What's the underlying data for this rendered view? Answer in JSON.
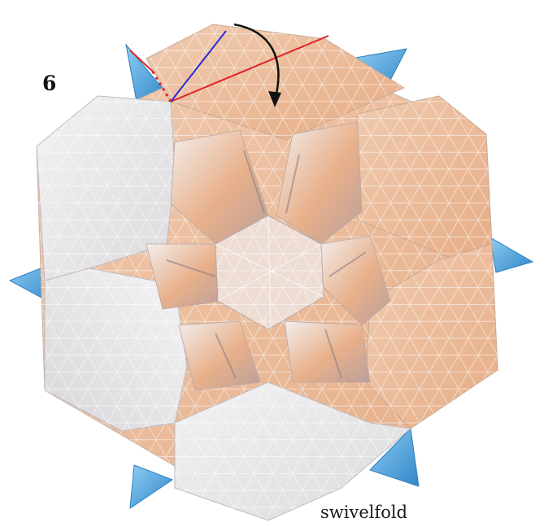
{
  "step": {
    "number": "6"
  },
  "watermark": {
    "text": "swivelfold"
  },
  "colors": {
    "paper_white": "#ecebee",
    "paper_shadow": "#d8d5d8",
    "paper_peach": "#ebbc9c",
    "paper_orange": "#e39f6f",
    "accent_blue": "#3a93d2",
    "accent_blue_light": "#74bff0",
    "line_red": "#e0222a",
    "line_blue": "#2a2ad8",
    "arrow": "#111111",
    "background": "#ffffff"
  }
}
